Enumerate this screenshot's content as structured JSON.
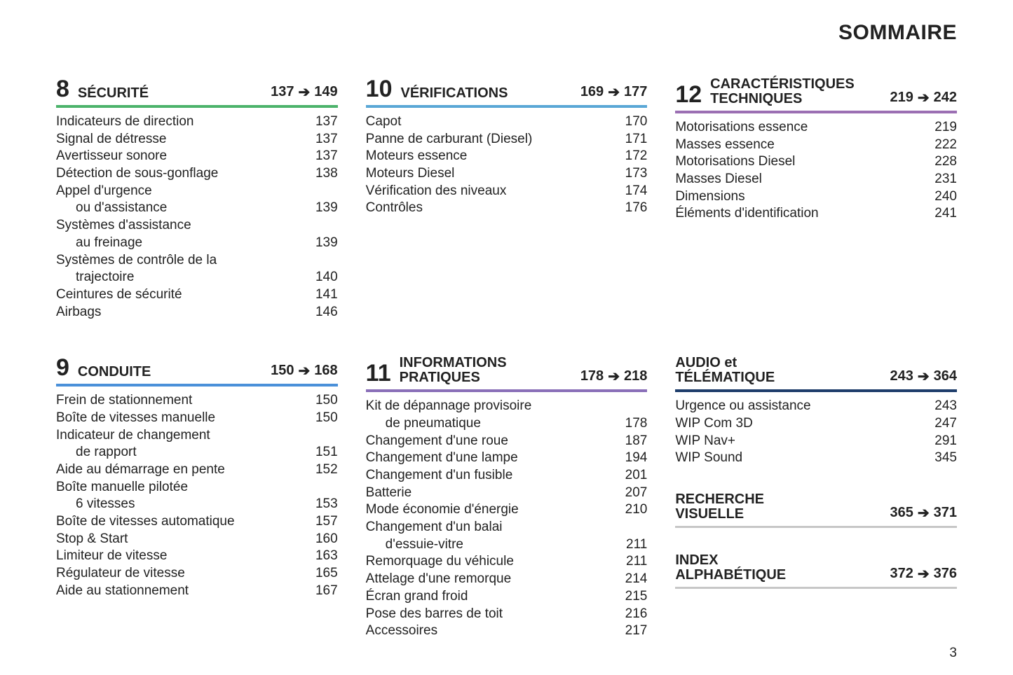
{
  "page_title": "SOMMAIRE",
  "page_number": "3",
  "arrow_glyph": "➔",
  "colors": {
    "green": "#4cb36b",
    "blue": "#4a90d9",
    "lightblue": "#5aa7d6",
    "purple": "#9b6fb3",
    "violet": "#8a6fb8",
    "navy": "#1e3d6b",
    "grey": "#c7c7c7"
  },
  "sections": [
    {
      "number": "8",
      "title": "SÉCURITÉ",
      "start": "137",
      "end": "149",
      "underline": "green",
      "entries": [
        {
          "label": "Indicateurs de direction",
          "page": "137"
        },
        {
          "label": "Signal de détresse",
          "page": "137"
        },
        {
          "label": "Avertisseur sonore",
          "page": "137"
        },
        {
          "label": "Détection de sous-gonflage",
          "page": "138"
        },
        {
          "label": "Appel d'urgence",
          "page": ""
        },
        {
          "label": "ou d'assistance",
          "page": "139",
          "indent": true
        },
        {
          "label": "Systèmes d'assistance",
          "page": ""
        },
        {
          "label": "au freinage",
          "page": "139",
          "indent": true
        },
        {
          "label": "Systèmes de contrôle de la",
          "page": ""
        },
        {
          "label": "trajectoire",
          "page": "140",
          "indent": true
        },
        {
          "label": "Ceintures de sécurité",
          "page": "141"
        },
        {
          "label": "Airbags",
          "page": "146"
        }
      ]
    },
    {
      "number": "10",
      "title": "VÉRIFICATIONS",
      "start": "169",
      "end": "177",
      "underline": "lightblue",
      "entries": [
        {
          "label": "Capot",
          "page": "170"
        },
        {
          "label": "Panne de carburant (Diesel)",
          "page": "171"
        },
        {
          "label": "Moteurs essence",
          "page": "172"
        },
        {
          "label": "Moteurs Diesel",
          "page": "173"
        },
        {
          "label": "Vérification des niveaux",
          "page": "174"
        },
        {
          "label": "Contrôles",
          "page": "176"
        }
      ]
    },
    {
      "number": "12",
      "title": "CARACTÉRISTIQUES\nTECHNIQUES",
      "start": "219",
      "end": "242",
      "underline": "purple",
      "entries": [
        {
          "label": "Motorisations essence",
          "page": "219"
        },
        {
          "label": "Masses essence",
          "page": "222"
        },
        {
          "label": "Motorisations Diesel",
          "page": "228"
        },
        {
          "label": "Masses Diesel",
          "page": "231"
        },
        {
          "label": "Dimensions",
          "page": "240"
        },
        {
          "label": "Éléments d'identification",
          "page": "241"
        }
      ]
    },
    {
      "number": "9",
      "title": "CONDUITE",
      "start": "150",
      "end": "168",
      "underline": "blue",
      "entries": [
        {
          "label": "Frein de stationnement",
          "page": "150"
        },
        {
          "label": "Boîte de vitesses manuelle",
          "page": "150"
        },
        {
          "label": "Indicateur de changement",
          "page": ""
        },
        {
          "label": "de rapport",
          "page": "151",
          "indent": true
        },
        {
          "label": "Aide au démarrage en pente",
          "page": "152"
        },
        {
          "label": "Boîte manuelle pilotée",
          "page": ""
        },
        {
          "label": "6 vitesses",
          "page": "153",
          "indent": true
        },
        {
          "label": "Boîte de vitesses automatique",
          "page": "157"
        },
        {
          "label": "Stop & Start",
          "page": "160"
        },
        {
          "label": "Limiteur de vitesse",
          "page": "163"
        },
        {
          "label": "Régulateur de vitesse",
          "page": "165"
        },
        {
          "label": "Aide au stationnement",
          "page": "167"
        }
      ]
    },
    {
      "number": "11",
      "title": "INFORMATIONS\nPRATIQUES",
      "start": "178",
      "end": "218",
      "underline": "violet",
      "entries": [
        {
          "label": "Kit de dépannage provisoire",
          "page": ""
        },
        {
          "label": "de pneumatique",
          "page": "178",
          "indent": true
        },
        {
          "label": "Changement d'une roue",
          "page": "187"
        },
        {
          "label": "Changement d'une lampe",
          "page": "194"
        },
        {
          "label": "Changement d'un fusible",
          "page": "201"
        },
        {
          "label": "Batterie",
          "page": "207"
        },
        {
          "label": "Mode économie d'énergie",
          "page": "210"
        },
        {
          "label": "Changement d'un balai",
          "page": ""
        },
        {
          "label": "d'essuie-vitre",
          "page": "211",
          "indent": true
        },
        {
          "label": "Remorquage du véhicule",
          "page": "211"
        },
        {
          "label": "Attelage d'une remorque",
          "page": "214"
        },
        {
          "label": "Écran grand froid",
          "page": "215"
        },
        {
          "label": "Pose des barres de toit",
          "page": "216"
        },
        {
          "label": "Accessoires",
          "page": "217"
        }
      ]
    },
    {
      "stacked": true,
      "blocks": [
        {
          "number": "",
          "title": "AUDIO et\nTÉLÉMATIQUE",
          "start": "243",
          "end": "364",
          "underline": "navy",
          "entries": [
            {
              "label": "Urgence ou assistance",
              "page": "243"
            },
            {
              "label": "WIP Com 3D",
              "page": "247"
            },
            {
              "label": "WIP Nav+",
              "page": "291"
            },
            {
              "label": "WIP Sound",
              "page": "345"
            }
          ]
        },
        {
          "number": "",
          "title": "RECHERCHE\nVISUELLE",
          "start": "365",
          "end": "371",
          "underline": "grey",
          "entries": []
        },
        {
          "number": "",
          "title": "INDEX\nALPHABÉTIQUE",
          "start": "372",
          "end": "376",
          "underline": "grey",
          "entries": []
        }
      ]
    }
  ]
}
